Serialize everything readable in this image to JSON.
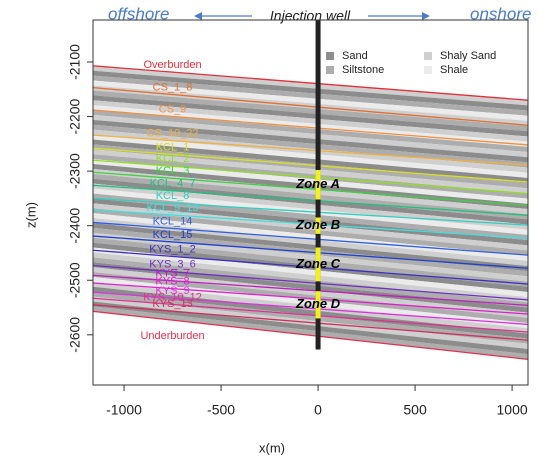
{
  "chart_data": {
    "type": "cross-section",
    "left_label": "offshore",
    "right_label": "onshore",
    "xlabel": "x(m)",
    "ylabel": "z(m)",
    "xlim": [
      -1160,
      1082
    ],
    "ylim": [
      -2692,
      -2023
    ],
    "xticks": [
      -1000,
      -500,
      0,
      500,
      1000
    ],
    "yticks": [
      -2100,
      -2200,
      -2300,
      -2400,
      -2500,
      -2600
    ],
    "x": [
      -1160,
      1082
    ],
    "series": [
      {
        "name": "Overburden",
        "color": "#e0303a",
        "values": [
          -2107,
          -2170
        ]
      },
      {
        "name": "CS_1_8",
        "color": "#e07030",
        "values": [
          -2147,
          -2216
        ]
      },
      {
        "name": "CS_9",
        "color": "#f09040",
        "values": [
          -2188,
          -2252
        ]
      },
      {
        "name": "CS_10_22",
        "color": "#f0b040",
        "values": [
          -2234,
          -2289
        ]
      },
      {
        "name": "KCL_1",
        "color": "#d8e020",
        "values": [
          -2258,
          -2320
        ]
      },
      {
        "name": "KCL_2",
        "color": "#90e020",
        "values": [
          -2280,
          -2341
        ]
      },
      {
        "name": "KCL_3",
        "color": "#40d040",
        "values": [
          -2302,
          -2363
        ]
      },
      {
        "name": "KCL_4_7",
        "color": "#20c080",
        "values": [
          -2326,
          -2381
        ]
      },
      {
        "name": "KCL_8",
        "color": "#30d0c0",
        "values": [
          -2350,
          -2399
        ]
      },
      {
        "name": "KCL_9_13",
        "color": "#40e0e0",
        "values": [
          -2371,
          -2423
        ]
      },
      {
        "name": "KCL_14",
        "color": "#3060e0",
        "values": [
          -2394,
          -2454
        ]
      },
      {
        "name": "KCL_15",
        "color": "#2040d0",
        "values": [
          -2419,
          -2478
        ]
      },
      {
        "name": "KYS_1_2",
        "color": "#4030c0",
        "values": [
          -2445,
          -2507
        ]
      },
      {
        "name": "KYS_3_6",
        "color": "#7030c0",
        "values": [
          -2473,
          -2536
        ]
      },
      {
        "name": "KYS_7",
        "color": "#c020c0",
        "values": [
          -2491,
          -2546
        ]
      },
      {
        "name": "KYS_8",
        "color": "#e020d0",
        "values": [
          -2505,
          -2562
        ]
      },
      {
        "name": "KYS_9",
        "color": "#e030e0",
        "values": [
          -2522,
          -2581
        ]
      },
      {
        "name": "KYS_10_12",
        "color": "#e03090",
        "values": [
          -2533,
          -2595
        ]
      },
      {
        "name": "KYS_13",
        "color": "#d03060",
        "values": [
          -2545,
          -2610
        ]
      },
      {
        "name": "Underburden",
        "color": "#e03050",
        "values": [
          -2557,
          -2645
        ]
      }
    ],
    "lithology": [
      {
        "name": "Sand",
        "color": "#8c8c8c"
      },
      {
        "name": "Siltstone",
        "color": "#adadad"
      },
      {
        "name": "Shaly Sand",
        "color": "#cfcfcf"
      },
      {
        "name": "Shale",
        "color": "#ebebeb"
      }
    ],
    "well": {
      "label": "Injection well",
      "x": 0,
      "bottom": -2627,
      "color": "#222222"
    },
    "zones": [
      {
        "name": "Zone A",
        "top": -2298,
        "bottom": -2352,
        "color": "#f2f020"
      },
      {
        "name": "Zone B",
        "top": -2385,
        "bottom": -2415,
        "color": "#f2f020"
      },
      {
        "name": "Zone C",
        "top": -2440,
        "bottom": -2502,
        "color": "#f2f020"
      },
      {
        "name": "Zone D",
        "top": -2520,
        "bottom": -2570,
        "color": "#f2f020"
      }
    ]
  }
}
